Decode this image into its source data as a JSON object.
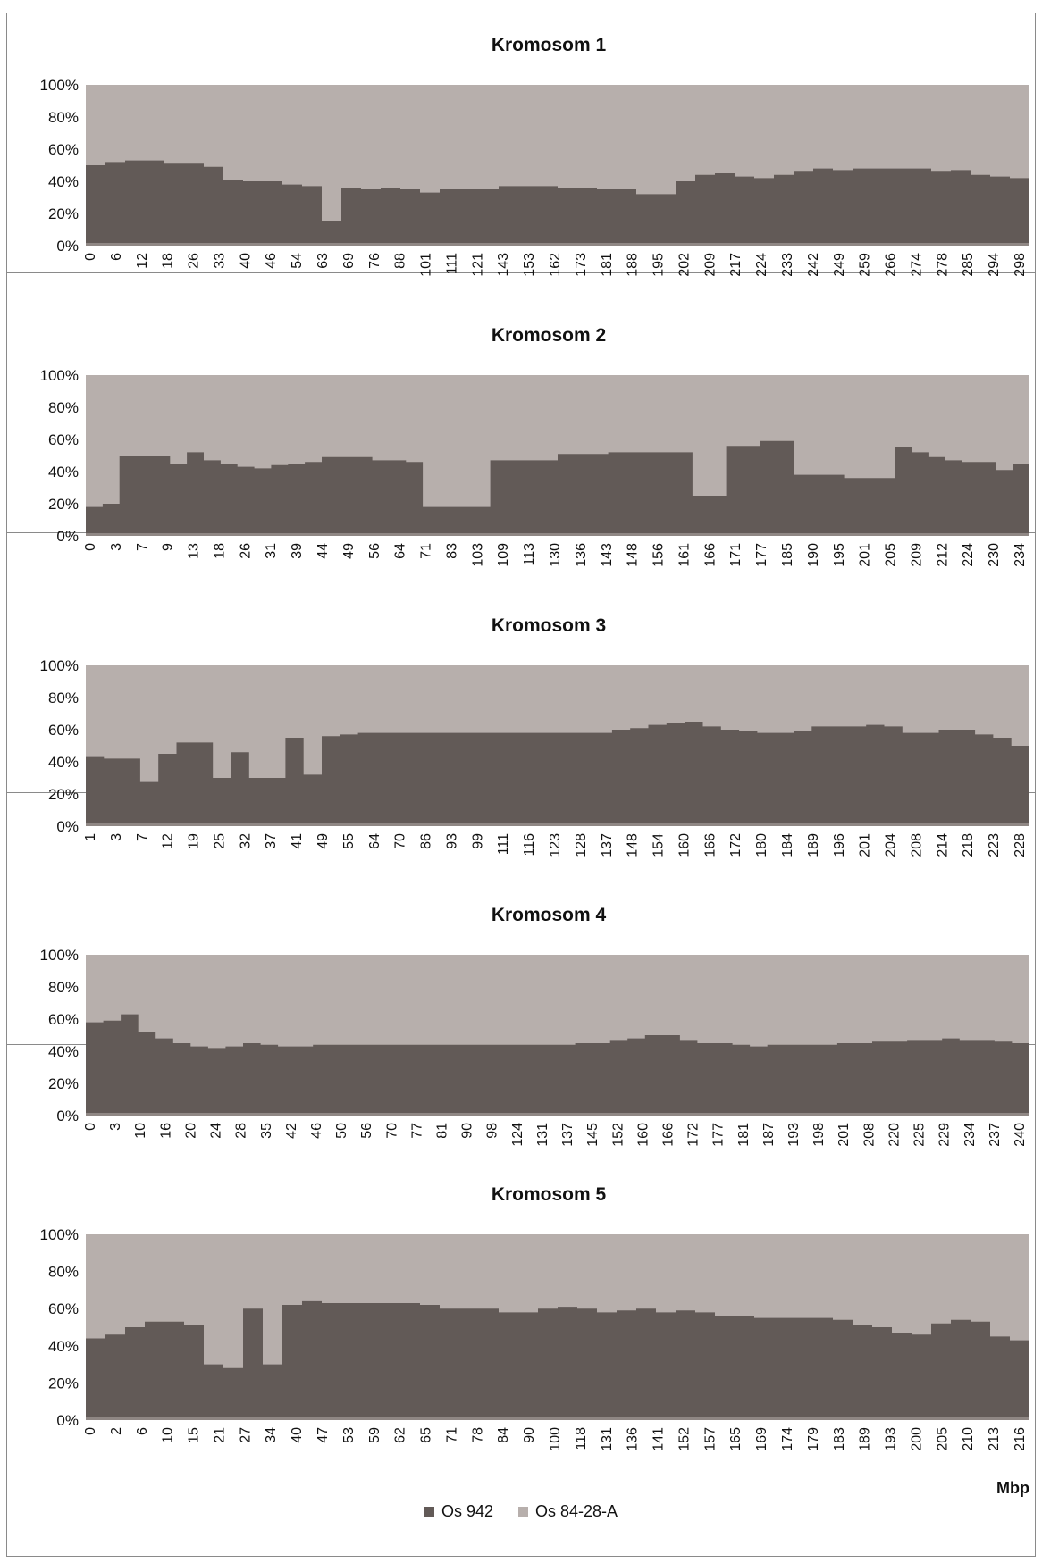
{
  "chart_data": [
    {
      "type": "area",
      "stacked": true,
      "percent": true,
      "title": "Kromosom 1",
      "x_tick_labels": [
        "0",
        "6",
        "12",
        "18",
        "26",
        "33",
        "40",
        "46",
        "54",
        "63",
        "69",
        "76",
        "88",
        "101",
        "111",
        "121",
        "143",
        "153",
        "162",
        "173",
        "181",
        "188",
        "195",
        "202",
        "209",
        "217",
        "224",
        "233",
        "242",
        "249",
        "259",
        "266",
        "274",
        "278",
        "285",
        "294",
        "298"
      ],
      "y_tick_labels": [
        "0%",
        "20%",
        "40%",
        "60%",
        "80%",
        "100%"
      ],
      "ylim": [
        0,
        100
      ],
      "series": [
        {
          "name": "Os 942",
          "values": [
            50,
            52,
            53,
            53,
            51,
            51,
            49,
            41,
            40,
            40,
            38,
            37,
            15,
            36,
            35,
            36,
            35,
            33,
            35,
            35,
            35,
            37,
            37,
            37,
            36,
            36,
            35,
            35,
            32,
            32,
            40,
            44,
            45,
            43,
            42,
            44,
            46,
            48,
            47,
            48,
            48,
            48,
            48,
            46,
            47,
            44,
            43,
            42
          ]
        },
        {
          "name": "Os 84-28-A",
          "values_note": "complement to 100%"
        }
      ]
    },
    {
      "type": "area",
      "stacked": true,
      "percent": true,
      "title": "Kromosom 2",
      "x_tick_labels": [
        "0",
        "3",
        "7",
        "9",
        "13",
        "18",
        "26",
        "31",
        "39",
        "44",
        "49",
        "56",
        "64",
        "71",
        "83",
        "103",
        "109",
        "113",
        "130",
        "136",
        "143",
        "148",
        "156",
        "161",
        "166",
        "171",
        "177",
        "185",
        "190",
        "195",
        "201",
        "205",
        "209",
        "212",
        "224",
        "230",
        "234"
      ],
      "y_tick_labels": [
        "0%",
        "20%",
        "40%",
        "60%",
        "80%",
        "100%"
      ],
      "ylim": [
        0,
        100
      ],
      "series": [
        {
          "name": "Os 942",
          "values": [
            18,
            20,
            50,
            50,
            50,
            45,
            52,
            47,
            45,
            43,
            42,
            44,
            45,
            46,
            49,
            49,
            49,
            47,
            47,
            46,
            18,
            18,
            18,
            18,
            47,
            47,
            47,
            47,
            51,
            51,
            51,
            52,
            52,
            52,
            52,
            52,
            25,
            25,
            56,
            56,
            59,
            59,
            38,
            38,
            38,
            36,
            36,
            36,
            55,
            52,
            49,
            47,
            46,
            46,
            41,
            45
          ]
        },
        {
          "name": "Os 84-28-A",
          "values_note": "complement to 100%"
        }
      ]
    },
    {
      "type": "area",
      "stacked": true,
      "percent": true,
      "title": "Kromosom 3",
      "x_tick_labels": [
        "1",
        "3",
        "7",
        "12",
        "19",
        "25",
        "32",
        "37",
        "41",
        "49",
        "55",
        "64",
        "70",
        "86",
        "93",
        "99",
        "111",
        "116",
        "123",
        "128",
        "137",
        "148",
        "154",
        "160",
        "166",
        "172",
        "180",
        "184",
        "189",
        "196",
        "201",
        "204",
        "208",
        "214",
        "218",
        "223",
        "228"
      ],
      "y_tick_labels": [
        "0%",
        "20%",
        "40%",
        "60%",
        "80%",
        "100%"
      ],
      "ylim": [
        0,
        100
      ],
      "series": [
        {
          "name": "Os 942",
          "values": [
            43,
            42,
            42,
            28,
            45,
            52,
            52,
            30,
            46,
            30,
            30,
            55,
            32,
            56,
            57,
            58,
            58,
            58,
            58,
            58,
            58,
            58,
            58,
            58,
            58,
            58,
            58,
            58,
            58,
            60,
            61,
            63,
            64,
            65,
            62,
            60,
            59,
            58,
            58,
            59,
            62,
            62,
            62,
            63,
            62,
            58,
            58,
            60,
            60,
            57,
            55,
            50
          ]
        },
        {
          "name": "Os 84-28-A",
          "values_note": "complement to 100%"
        }
      ]
    },
    {
      "type": "area",
      "stacked": true,
      "percent": true,
      "title": "Kromosom 4",
      "x_tick_labels": [
        "0",
        "3",
        "10",
        "16",
        "20",
        "24",
        "28",
        "35",
        "42",
        "46",
        "50",
        "56",
        "70",
        "77",
        "81",
        "90",
        "98",
        "124",
        "131",
        "137",
        "145",
        "152",
        "160",
        "166",
        "172",
        "177",
        "181",
        "187",
        "193",
        "198",
        "201",
        "208",
        "220",
        "225",
        "229",
        "234",
        "237",
        "240"
      ],
      "y_tick_labels": [
        "0%",
        "20%",
        "40%",
        "60%",
        "80%",
        "100%"
      ],
      "ylim": [
        0,
        100
      ],
      "series": [
        {
          "name": "Os 942",
          "values": [
            58,
            59,
            63,
            52,
            48,
            45,
            43,
            42,
            43,
            45,
            44,
            43,
            43,
            44,
            44,
            44,
            44,
            44,
            44,
            44,
            44,
            44,
            44,
            44,
            44,
            44,
            44,
            44,
            45,
            45,
            47,
            48,
            50,
            50,
            47,
            45,
            45,
            44,
            43,
            44,
            44,
            44,
            44,
            45,
            45,
            46,
            46,
            47,
            47,
            48,
            47,
            47,
            46,
            45
          ]
        },
        {
          "name": "Os 84-28-A",
          "values_note": "complement to 100%"
        }
      ]
    },
    {
      "type": "area",
      "stacked": true,
      "percent": true,
      "title": "Kromosom 5",
      "x_tick_labels": [
        "0",
        "2",
        "6",
        "10",
        "15",
        "21",
        "27",
        "34",
        "40",
        "47",
        "53",
        "59",
        "62",
        "65",
        "71",
        "78",
        "84",
        "90",
        "100",
        "118",
        "131",
        "136",
        "141",
        "152",
        "157",
        "165",
        "169",
        "174",
        "179",
        "183",
        "189",
        "193",
        "200",
        "205",
        "210",
        "213",
        "216"
      ],
      "xlabel": "Mbp",
      "y_tick_labels": [
        "0%",
        "20%",
        "40%",
        "60%",
        "80%",
        "100%"
      ],
      "ylim": [
        0,
        100
      ],
      "series": [
        {
          "name": "Os 942",
          "values": [
            44,
            46,
            50,
            53,
            53,
            51,
            30,
            28,
            60,
            30,
            62,
            64,
            63,
            63,
            63,
            63,
            63,
            62,
            60,
            60,
            60,
            58,
            58,
            60,
            61,
            60,
            58,
            59,
            60,
            58,
            59,
            58,
            56,
            56,
            55,
            55,
            55,
            55,
            54,
            51,
            50,
            47,
            46,
            52,
            54,
            53,
            45,
            43
          ]
        },
        {
          "name": "Os 84-28-A",
          "values_note": "complement to 100%"
        }
      ]
    }
  ],
  "legend": [
    {
      "label": "Os 942",
      "color": "#625a57"
    },
    {
      "label": "Os 84-28-A",
      "color": "#b7afac"
    }
  ],
  "colors": {
    "series_dark": "#625a57",
    "series_light": "#b7afac",
    "axis_line": "#888888"
  }
}
